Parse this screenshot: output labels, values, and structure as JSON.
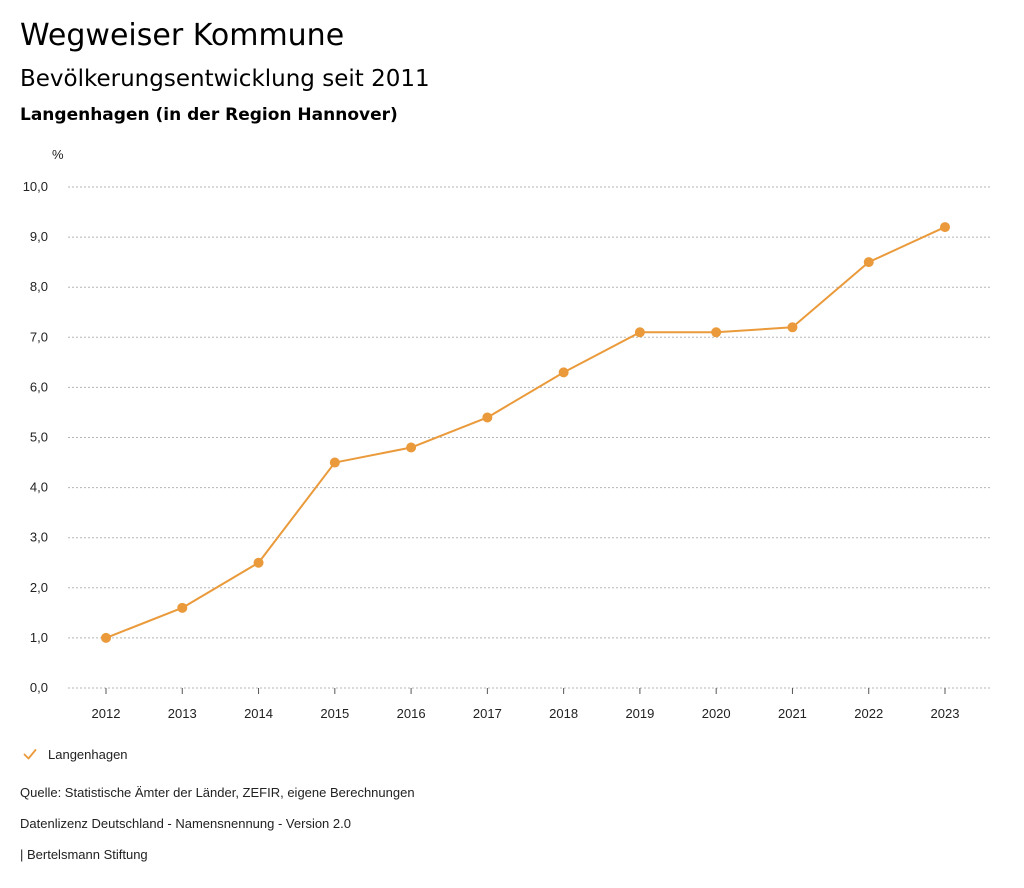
{
  "header": {
    "title": "Wegweiser Kommune",
    "subtitle": "Bevölkerungsentwicklung seit 2011",
    "region": "Langenhagen (in der Region Hannover)"
  },
  "chart_data": {
    "type": "line",
    "title": "Bevölkerungsentwicklung seit 2011",
    "xlabel": "",
    "ylabel": "%",
    "categories": [
      "2012",
      "2013",
      "2014",
      "2015",
      "2016",
      "2017",
      "2018",
      "2019",
      "2020",
      "2021",
      "2022",
      "2023"
    ],
    "series": [
      {
        "name": "Langenhagen",
        "color": "#ea9a3a",
        "values": [
          1.0,
          1.6,
          2.5,
          4.5,
          4.8,
          5.4,
          6.3,
          7.1,
          7.1,
          7.2,
          8.5,
          9.2
        ]
      }
    ],
    "ylim": [
      0,
      10
    ],
    "yticks": [
      "0,0",
      "1,0",
      "2,0",
      "3,0",
      "4,0",
      "5,0",
      "6,0",
      "7,0",
      "8,0",
      "9,0",
      "10,0"
    ],
    "grid": true,
    "legend": "bottom-left"
  },
  "legend": {
    "label": "Langenhagen",
    "icon": "check-icon"
  },
  "footer": {
    "source": "Quelle: Statistische Ämter der Länder, ZEFIR, eigene Berechnungen",
    "license": "Datenlizenz Deutschland - Namensnennung - Version 2.0",
    "publisher": "| Bertelsmann Stiftung"
  }
}
